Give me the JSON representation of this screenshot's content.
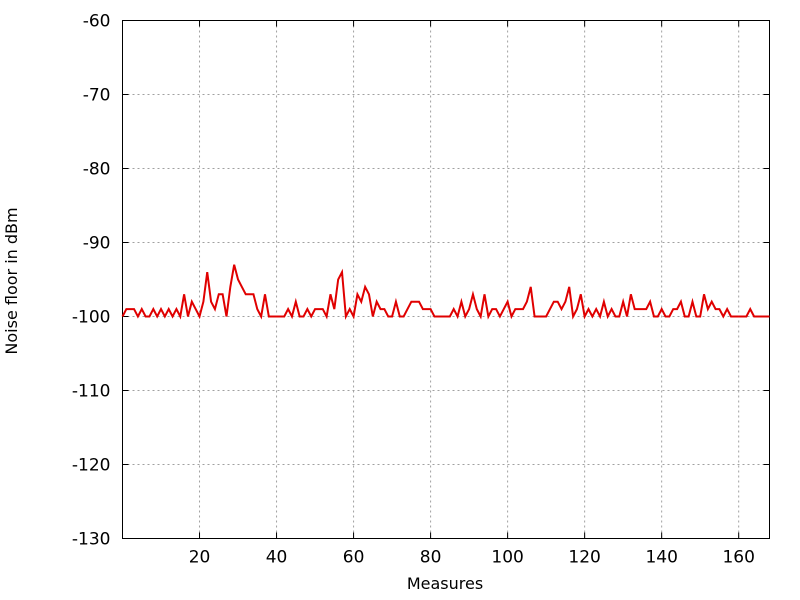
{
  "chart_data": {
    "type": "line",
    "title": "",
    "xlabel": "Measures",
    "ylabel": "Noise floor in dBm",
    "xlim": [
      0,
      168
    ],
    "ylim": [
      -130,
      -60
    ],
    "xticks": [
      20,
      40,
      60,
      80,
      100,
      120,
      140,
      160
    ],
    "yticks": [
      -60,
      -70,
      -80,
      -90,
      -100,
      -110,
      -120,
      -130
    ],
    "grid": true,
    "legend": "none",
    "series": [
      {
        "color": "#e00000",
        "x": [
          0,
          1,
          2,
          3,
          4,
          5,
          6,
          7,
          8,
          9,
          10,
          11,
          12,
          13,
          14,
          15,
          16,
          17,
          18,
          19,
          20,
          21,
          22,
          23,
          24,
          25,
          26,
          27,
          28,
          29,
          30,
          31,
          32,
          33,
          34,
          35,
          36,
          37,
          38,
          39,
          40,
          41,
          42,
          43,
          44,
          45,
          46,
          47,
          48,
          49,
          50,
          51,
          52,
          53,
          54,
          55,
          56,
          57,
          58,
          59,
          60,
          61,
          62,
          63,
          64,
          65,
          66,
          67,
          68,
          69,
          70,
          71,
          72,
          73,
          74,
          75,
          76,
          77,
          78,
          79,
          80,
          81,
          82,
          83,
          84,
          85,
          86,
          87,
          88,
          89,
          90,
          91,
          92,
          93,
          94,
          95,
          96,
          97,
          98,
          99,
          100,
          101,
          102,
          103,
          104,
          105,
          106,
          107,
          108,
          109,
          110,
          111,
          112,
          113,
          114,
          115,
          116,
          117,
          118,
          119,
          120,
          121,
          122,
          123,
          124,
          125,
          126,
          127,
          128,
          129,
          130,
          131,
          132,
          133,
          134,
          135,
          136,
          137,
          138,
          139,
          140,
          141,
          142,
          143,
          144,
          145,
          146,
          147,
          148,
          149,
          150,
          151,
          152,
          153,
          154,
          155,
          156,
          157,
          158,
          159,
          160,
          161,
          162,
          163,
          164,
          165,
          166,
          167,
          168
        ],
        "y": [
          -100,
          -99,
          -99,
          -99,
          -100,
          -99,
          -100,
          -100,
          -99,
          -100,
          -99,
          -100,
          -99,
          -100,
          -99,
          -100,
          -97,
          -100,
          -98,
          -99,
          -100,
          -98,
          -94,
          -98,
          -99,
          -97,
          -97,
          -100,
          -96,
          -93,
          -95,
          -96,
          -97,
          -97,
          -97,
          -99,
          -100,
          -97,
          -100,
          -100,
          -100,
          -100,
          -100,
          -99,
          -100,
          -98,
          -100,
          -100,
          -99,
          -100,
          -99,
          -99,
          -99,
          -100,
          -97,
          -99,
          -95,
          -94,
          -100,
          -99,
          -100,
          -97,
          -98,
          -96,
          -97,
          -100,
          -98,
          -99,
          -99,
          -100,
          -100,
          -98,
          -100,
          -100,
          -99,
          -98,
          -98,
          -98,
          -99,
          -99,
          -99,
          -100,
          -100,
          -100,
          -100,
          -100,
          -99,
          -100,
          -98,
          -100,
          -99,
          -97,
          -99,
          -100,
          -97,
          -100,
          -99,
          -99,
          -100,
          -99,
          -98,
          -100,
          -99,
          -99,
          -99,
          -98,
          -96,
          -100,
          -100,
          -100,
          -100,
          -99,
          -98,
          -98,
          -99,
          -98,
          -96,
          -100,
          -99,
          -97,
          -100,
          -99,
          -100,
          -99,
          -100,
          -98,
          -100,
          -99,
          -100,
          -100,
          -98,
          -100,
          -97,
          -99,
          -99,
          -99,
          -99,
          -98,
          -100,
          -100,
          -99,
          -100,
          -100,
          -99,
          -99,
          -98,
          -100,
          -100,
          -98,
          -100,
          -100,
          -97,
          -99,
          -98,
          -99,
          -99,
          -100,
          -99,
          -100,
          -100,
          -100,
          -100,
          -100,
          -99,
          -100,
          -100,
          -100,
          -100,
          -100
        ]
      }
    ]
  }
}
